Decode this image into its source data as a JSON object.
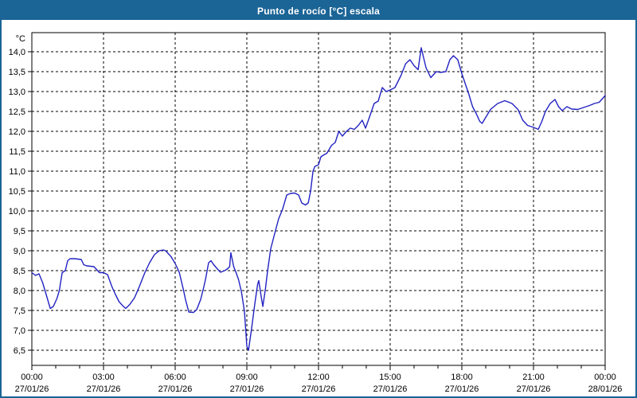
{
  "window": {
    "title": "Punto de rocío [°C] escala"
  },
  "colors": {
    "chrome": "#1B6496",
    "title_text": "#FFFFFF",
    "line": "#2222C2",
    "grid": "#000000",
    "axis": "#000000",
    "label_text": "#000000",
    "plot_bg": "#FFFFFF"
  },
  "chart_data": {
    "type": "line",
    "title": "Punto de rocío [°C] escala",
    "xlabel": "",
    "ylabel": "°C",
    "unit_label": "°C",
    "legend": "none",
    "grid": "dashed",
    "xlim_hours": [
      0,
      24
    ],
    "ylim": [
      6.2,
      14.5
    ],
    "x_gridline_every_hours": 3,
    "minor_tick_every_hours": 1,
    "y_ticks": [
      {
        "v": 14.0,
        "label": "14,0"
      },
      {
        "v": 13.5,
        "label": "13,5"
      },
      {
        "v": 13.0,
        "label": "13,0"
      },
      {
        "v": 12.5,
        "label": "12,5"
      },
      {
        "v": 12.0,
        "label": "12,0"
      },
      {
        "v": 11.5,
        "label": "11,5"
      },
      {
        "v": 11.0,
        "label": "11,0"
      },
      {
        "v": 10.5,
        "label": "10,5"
      },
      {
        "v": 10.0,
        "label": "10,0"
      },
      {
        "v": 9.5,
        "label": "9,5"
      },
      {
        "v": 9.0,
        "label": "9,0"
      },
      {
        "v": 8.5,
        "label": "8,5"
      },
      {
        "v": 8.0,
        "label": "8,0"
      },
      {
        "v": 7.5,
        "label": "7,5"
      },
      {
        "v": 7.0,
        "label": "7,0"
      },
      {
        "v": 6.5,
        "label": "6,5"
      }
    ],
    "x_ticks": [
      {
        "h": 0,
        "time": "00:00",
        "date": "27/01/26"
      },
      {
        "h": 3,
        "time": "03:00",
        "date": "27/01/26"
      },
      {
        "h": 6,
        "time": "06:00",
        "date": "27/01/26"
      },
      {
        "h": 9,
        "time": "09:00",
        "date": "27/01/26"
      },
      {
        "h": 12,
        "time": "12:00",
        "date": "27/01/26"
      },
      {
        "h": 15,
        "time": "15:00",
        "date": "27/01/26"
      },
      {
        "h": 18,
        "time": "18:00",
        "date": "27/01/26"
      },
      {
        "h": 21,
        "time": "21:00",
        "date": "27/01/26"
      },
      {
        "h": 24,
        "time": "00:00",
        "date": "28/01/26"
      }
    ],
    "series": [
      {
        "name": "Punto de rocío",
        "points": [
          [
            0,
            8.45
          ],
          [
            0.15,
            8.38
          ],
          [
            0.3,
            8.42
          ],
          [
            0.45,
            8.2
          ],
          [
            0.6,
            7.9
          ],
          [
            0.77,
            7.55
          ],
          [
            0.9,
            7.6
          ],
          [
            1.05,
            7.8
          ],
          [
            1.15,
            8.0
          ],
          [
            1.27,
            8.45
          ],
          [
            1.4,
            8.5
          ],
          [
            1.5,
            8.75
          ],
          [
            1.6,
            8.8
          ],
          [
            1.8,
            8.8
          ],
          [
            2.07,
            8.78
          ],
          [
            2.17,
            8.65
          ],
          [
            2.3,
            8.62
          ],
          [
            2.6,
            8.6
          ],
          [
            2.83,
            8.45
          ],
          [
            3.0,
            8.45
          ],
          [
            3.17,
            8.4
          ],
          [
            3.35,
            8.1
          ],
          [
            3.5,
            7.9
          ],
          [
            3.65,
            7.72
          ],
          [
            3.8,
            7.62
          ],
          [
            3.93,
            7.55
          ],
          [
            4.1,
            7.65
          ],
          [
            4.3,
            7.82
          ],
          [
            4.5,
            8.1
          ],
          [
            4.73,
            8.45
          ],
          [
            4.93,
            8.7
          ],
          [
            5.13,
            8.9
          ],
          [
            5.33,
            9.0
          ],
          [
            5.5,
            9.02
          ],
          [
            5.6,
            9.0
          ],
          [
            5.83,
            8.85
          ],
          [
            6.0,
            8.68
          ],
          [
            6.17,
            8.46
          ],
          [
            6.33,
            8.06
          ],
          [
            6.43,
            7.78
          ],
          [
            6.57,
            7.46
          ],
          [
            6.77,
            7.45
          ],
          [
            6.9,
            7.52
          ],
          [
            7.07,
            7.78
          ],
          [
            7.17,
            8.02
          ],
          [
            7.27,
            8.28
          ],
          [
            7.4,
            8.7
          ],
          [
            7.5,
            8.75
          ],
          [
            7.6,
            8.66
          ],
          [
            7.77,
            8.54
          ],
          [
            7.9,
            8.46
          ],
          [
            8.07,
            8.5
          ],
          [
            8.2,
            8.55
          ],
          [
            8.28,
            8.6
          ],
          [
            8.33,
            8.95
          ],
          [
            8.45,
            8.6
          ],
          [
            8.55,
            8.45
          ],
          [
            8.65,
            8.28
          ],
          [
            8.77,
            7.98
          ],
          [
            8.9,
            7.48
          ],
          [
            9.0,
            6.6
          ],
          [
            9.07,
            6.5
          ],
          [
            9.2,
            7.05
          ],
          [
            9.33,
            7.65
          ],
          [
            9.45,
            8.15
          ],
          [
            9.5,
            8.25
          ],
          [
            9.6,
            7.85
          ],
          [
            9.67,
            7.6
          ],
          [
            9.78,
            8.05
          ],
          [
            9.87,
            8.5
          ],
          [
            10.0,
            9.05
          ],
          [
            10.17,
            9.44
          ],
          [
            10.33,
            9.8
          ],
          [
            10.5,
            10.05
          ],
          [
            10.67,
            10.4
          ],
          [
            10.83,
            10.44
          ],
          [
            11.0,
            10.45
          ],
          [
            11.17,
            10.4
          ],
          [
            11.3,
            10.2
          ],
          [
            11.45,
            10.15
          ],
          [
            11.57,
            10.2
          ],
          [
            11.67,
            10.5
          ],
          [
            11.77,
            11.0
          ],
          [
            11.85,
            11.12
          ],
          [
            12.0,
            11.16
          ],
          [
            12.1,
            11.36
          ],
          [
            12.2,
            11.4
          ],
          [
            12.35,
            11.45
          ],
          [
            12.45,
            11.55
          ],
          [
            12.55,
            11.65
          ],
          [
            12.7,
            11.72
          ],
          [
            12.85,
            12.0
          ],
          [
            13.0,
            11.88
          ],
          [
            13.17,
            12.0
          ],
          [
            13.33,
            12.08
          ],
          [
            13.5,
            12.05
          ],
          [
            13.67,
            12.15
          ],
          [
            13.83,
            12.28
          ],
          [
            13.97,
            12.08
          ],
          [
            14.17,
            12.42
          ],
          [
            14.33,
            12.7
          ],
          [
            14.5,
            12.76
          ],
          [
            14.67,
            13.1
          ],
          [
            14.83,
            13.0
          ],
          [
            15.0,
            13.04
          ],
          [
            15.2,
            13.1
          ],
          [
            15.45,
            13.4
          ],
          [
            15.65,
            13.7
          ],
          [
            15.83,
            13.8
          ],
          [
            16.0,
            13.65
          ],
          [
            16.17,
            13.55
          ],
          [
            16.3,
            14.1
          ],
          [
            16.5,
            13.6
          ],
          [
            16.7,
            13.35
          ],
          [
            16.93,
            13.5
          ],
          [
            17.1,
            13.48
          ],
          [
            17.33,
            13.5
          ],
          [
            17.5,
            13.8
          ],
          [
            17.65,
            13.9
          ],
          [
            17.83,
            13.8
          ],
          [
            18.0,
            13.45
          ],
          [
            18.17,
            13.15
          ],
          [
            18.3,
            12.92
          ],
          [
            18.45,
            12.62
          ],
          [
            18.6,
            12.45
          ],
          [
            18.75,
            12.25
          ],
          [
            18.85,
            12.2
          ],
          [
            19.0,
            12.35
          ],
          [
            19.2,
            12.55
          ],
          [
            19.5,
            12.7
          ],
          [
            19.8,
            12.77
          ],
          [
            20.1,
            12.7
          ],
          [
            20.35,
            12.55
          ],
          [
            20.55,
            12.28
          ],
          [
            20.75,
            12.15
          ],
          [
            21.0,
            12.1
          ],
          [
            21.2,
            12.05
          ],
          [
            21.35,
            12.25
          ],
          [
            21.5,
            12.5
          ],
          [
            21.7,
            12.7
          ],
          [
            21.9,
            12.8
          ],
          [
            22.05,
            12.62
          ],
          [
            22.2,
            12.52
          ],
          [
            22.4,
            12.62
          ],
          [
            22.6,
            12.56
          ],
          [
            22.85,
            12.55
          ],
          [
            23.1,
            12.6
          ],
          [
            23.35,
            12.65
          ],
          [
            23.55,
            12.7
          ],
          [
            23.75,
            12.73
          ],
          [
            23.9,
            12.83
          ],
          [
            24.0,
            12.9
          ]
        ]
      }
    ]
  }
}
